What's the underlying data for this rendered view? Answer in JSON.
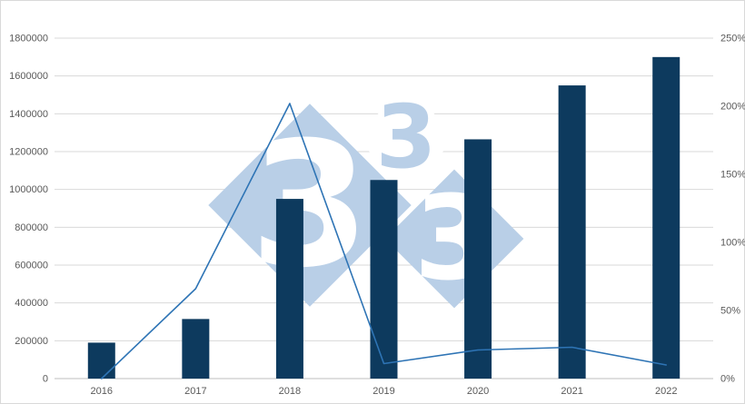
{
  "colors": {
    "bar": "#0d3a5e",
    "line": "#2e74b5",
    "grid": "#d9d9d9",
    "axis_line": "#bfbfbf",
    "tick_text": "#595959",
    "watermark_fill": "#b9cfe7",
    "watermark_text": "#ffffff",
    "background": "#ffffff",
    "border": "#d9d9d9"
  },
  "watermark": {
    "digits": [
      "3",
      "3",
      "3"
    ]
  },
  "chart_data": {
    "type": "bar+line",
    "title": "",
    "xlabel": "",
    "ylabel_left": "",
    "ylabel_right": "",
    "legend": "none",
    "grid": true,
    "categories": [
      "2016",
      "2017",
      "2018",
      "2019",
      "2020",
      "2021",
      "2022"
    ],
    "series": [
      {
        "name": "bars-left-axis",
        "type": "bar",
        "axis": "left",
        "values": [
          190000,
          315000,
          950000,
          1050000,
          1265000,
          1550000,
          1700000
        ]
      },
      {
        "name": "line-right-axis",
        "type": "line",
        "axis": "right",
        "values": [
          0,
          66,
          202,
          11,
          21,
          23,
          10
        ]
      }
    ],
    "left_axis": {
      "min": 0,
      "max": 1800000,
      "step": 200000,
      "tick_labels": [
        "0",
        "200000",
        "400000",
        "600000",
        "800000",
        "1000000",
        "1200000",
        "1400000",
        "1600000",
        "1800000"
      ]
    },
    "right_axis": {
      "min": 0,
      "max": 250,
      "step": 50,
      "tick_labels": [
        "0%",
        "50%",
        "100%",
        "150%",
        "200%",
        "250%"
      ]
    }
  }
}
